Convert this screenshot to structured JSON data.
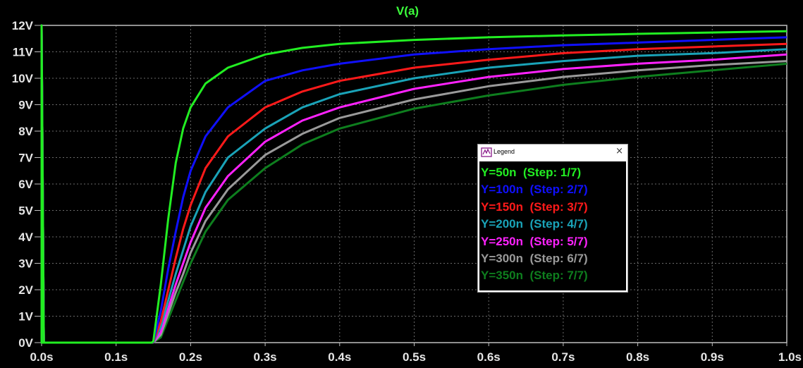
{
  "chart_data": {
    "type": "line",
    "title": "V(a)",
    "title_color": "#3cff3c",
    "background": "#000000",
    "grid": true,
    "xlim": [
      0,
      1.0
    ],
    "ylim": [
      0,
      12
    ],
    "x_ticks": [
      0,
      0.1,
      0.2,
      0.3,
      0.4,
      0.5,
      0.6,
      0.7,
      0.8,
      0.9,
      1.0
    ],
    "x_tick_labels": [
      "0.0s",
      "0.1s",
      "0.2s",
      "0.3s",
      "0.4s",
      "0.5s",
      "0.6s",
      "0.7s",
      "0.8s",
      "0.9s",
      "1.0s"
    ],
    "y_ticks": [
      0,
      1,
      2,
      3,
      4,
      5,
      6,
      7,
      8,
      9,
      10,
      11,
      12
    ],
    "y_tick_labels": [
      "0V",
      "1V",
      "2V",
      "3V",
      "4V",
      "5V",
      "6V",
      "7V",
      "8V",
      "9V",
      "10V",
      "11V",
      "12V"
    ],
    "x": [
      0.0,
      0.148,
      0.15,
      0.16,
      0.17,
      0.18,
      0.19,
      0.2,
      0.22,
      0.25,
      0.3,
      0.35,
      0.4,
      0.5,
      0.6,
      0.7,
      0.8,
      0.9,
      1.0
    ],
    "series": [
      {
        "name": "Y=50n",
        "color": "#22ee22",
        "values": [
          0,
          0,
          0.05,
          2.2,
          4.7,
          6.8,
          8.1,
          8.9,
          9.8,
          10.4,
          10.9,
          11.15,
          11.3,
          11.45,
          11.55,
          11.62,
          11.68,
          11.73,
          11.78
        ]
      },
      {
        "name": "Y=100n",
        "color": "#1010ff",
        "values": [
          0,
          0,
          0.03,
          1.2,
          2.8,
          4.2,
          5.5,
          6.5,
          7.8,
          8.9,
          9.9,
          10.3,
          10.55,
          10.9,
          11.1,
          11.25,
          11.35,
          11.45,
          11.55
        ]
      },
      {
        "name": "Y=150n",
        "color": "#ff1a1a",
        "values": [
          0,
          0,
          0.02,
          0.8,
          2.0,
          3.2,
          4.3,
          5.2,
          6.6,
          7.8,
          8.9,
          9.5,
          9.9,
          10.4,
          10.7,
          10.95,
          11.1,
          11.2,
          11.3
        ]
      },
      {
        "name": "Y=200n",
        "color": "#1aa3b8",
        "values": [
          0,
          0,
          0.02,
          0.6,
          1.6,
          2.6,
          3.5,
          4.4,
          5.7,
          7.0,
          8.1,
          8.9,
          9.4,
          10.0,
          10.4,
          10.65,
          10.85,
          10.95,
          11.1
        ]
      },
      {
        "name": "Y=250n",
        "color": "#ff22ff",
        "values": [
          0,
          0,
          0.01,
          0.4,
          1.3,
          2.2,
          3.0,
          3.8,
          5.1,
          6.3,
          7.6,
          8.4,
          8.9,
          9.6,
          10.05,
          10.35,
          10.55,
          10.7,
          10.9
        ]
      },
      {
        "name": "Y=300n",
        "color": "#9a9a9a",
        "values": [
          0,
          0,
          0.01,
          0.3,
          1.1,
          1.9,
          2.6,
          3.4,
          4.6,
          5.8,
          7.1,
          7.9,
          8.5,
          9.2,
          9.7,
          10.05,
          10.3,
          10.5,
          10.65
        ]
      },
      {
        "name": "Y=350n",
        "color": "#0e7e1e",
        "values": [
          0,
          0,
          0.01,
          0.2,
          0.9,
          1.6,
          2.3,
          3.0,
          4.2,
          5.4,
          6.6,
          7.5,
          8.1,
          8.85,
          9.35,
          9.75,
          10.05,
          10.3,
          10.55
        ]
      }
    ]
  },
  "legend": {
    "title": "Legend",
    "close_glyph": "×",
    "entries": [
      {
        "text": "Y=50n  (Step: 1/7)",
        "color": "#22ee22"
      },
      {
        "text": "Y=100n  (Step: 2/7)",
        "color": "#1010ff"
      },
      {
        "text": "Y=150n  (Step: 3/7)",
        "color": "#ff1a1a"
      },
      {
        "text": "Y=200n  (Step: 4/7)",
        "color": "#1aa3b8"
      },
      {
        "text": "Y=250n  (Step: 5/7)",
        "color": "#ff22ff"
      },
      {
        "text": "Y=300n  (Step: 6/7)",
        "color": "#9a9a9a"
      },
      {
        "text": "Y=350n  (Step: 7/7)",
        "color": "#0e7e1e"
      }
    ]
  }
}
